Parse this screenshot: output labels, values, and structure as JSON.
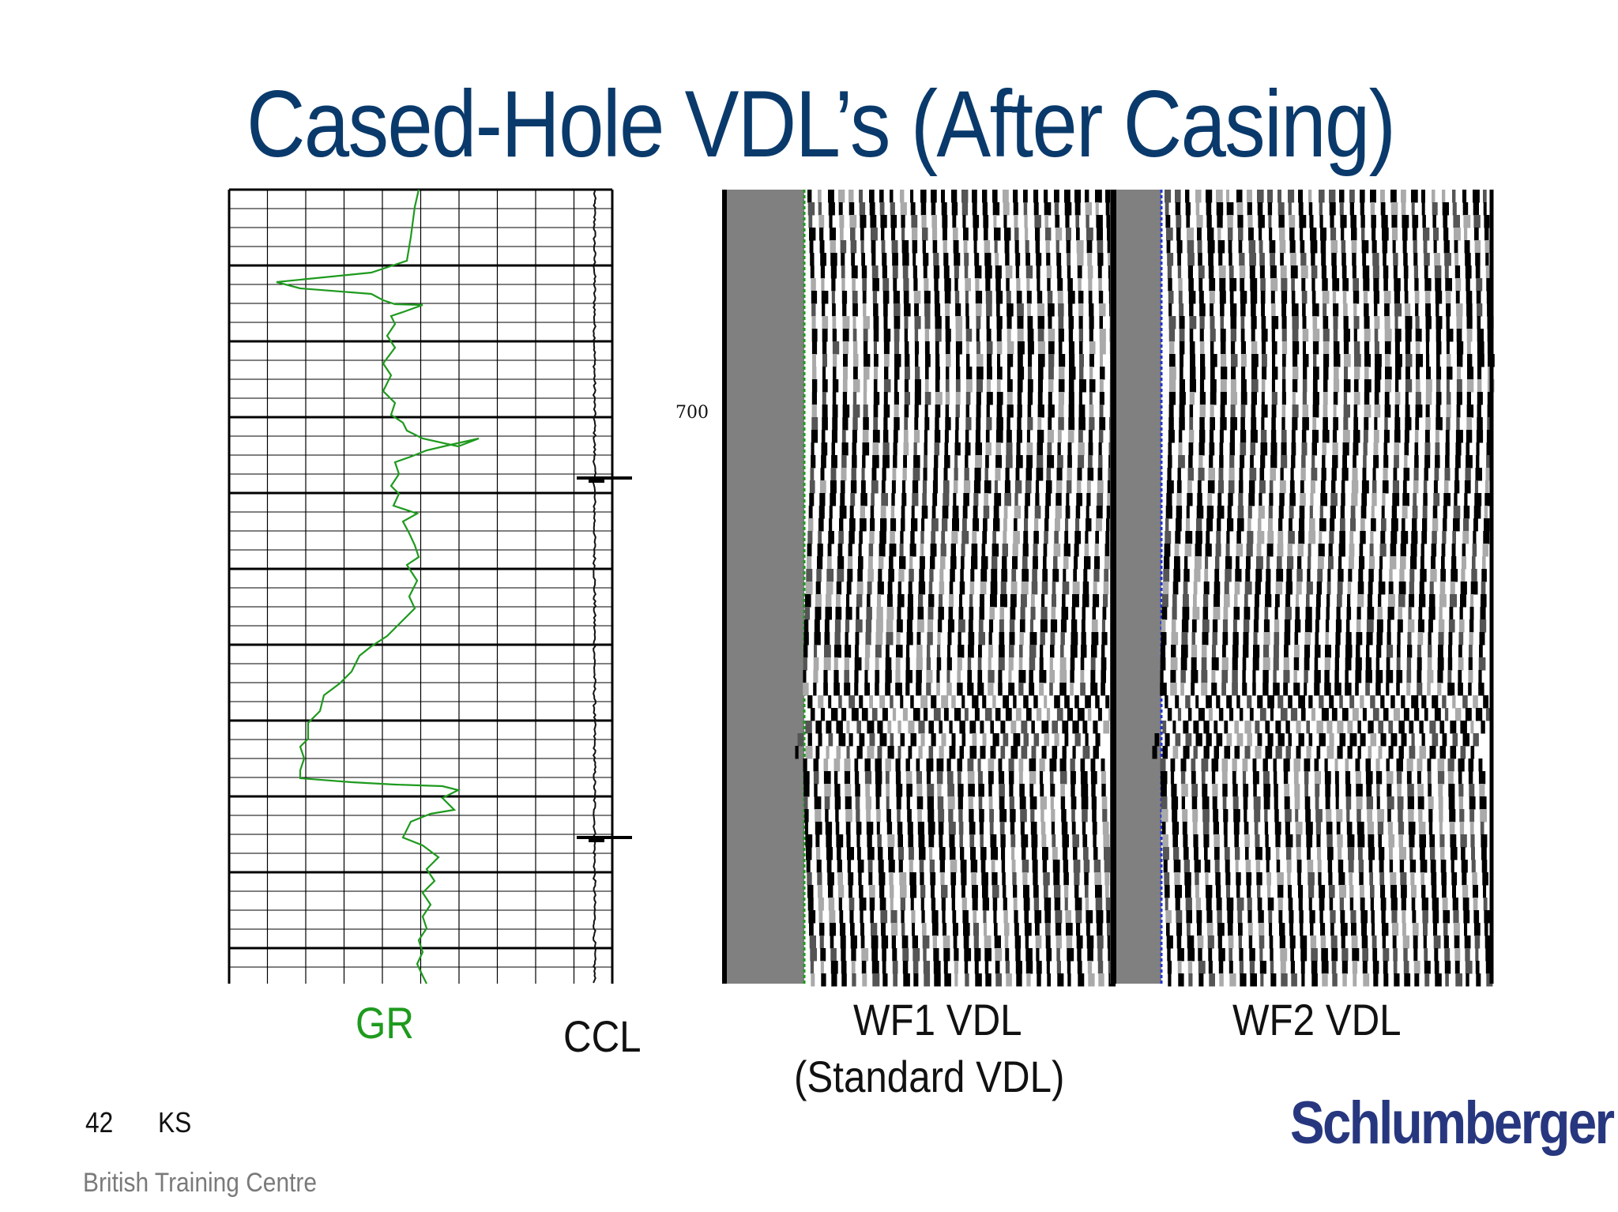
{
  "slide": {
    "title": "Cased-Hole VDL’s (After Casing)",
    "depth_label": "700",
    "labels": {
      "gr": "GR",
      "ccl": "CCL",
      "wf1": "WF1 VDL",
      "wf1_sub": "(Standard VDL)",
      "wf2": "WF2 VDL"
    },
    "footer": {
      "page_number": "42",
      "initials": "KS",
      "centre": "British Training Centre"
    },
    "logo_text": "Schlumberger"
  },
  "colors": {
    "title": "#0a3a6b",
    "gr_curve": "#1e9a1e",
    "logo": "#27377f",
    "vdl_gray": "#808080",
    "wf1_marker": "#1e9a1e",
    "wf2_marker": "#2233cc"
  }
}
